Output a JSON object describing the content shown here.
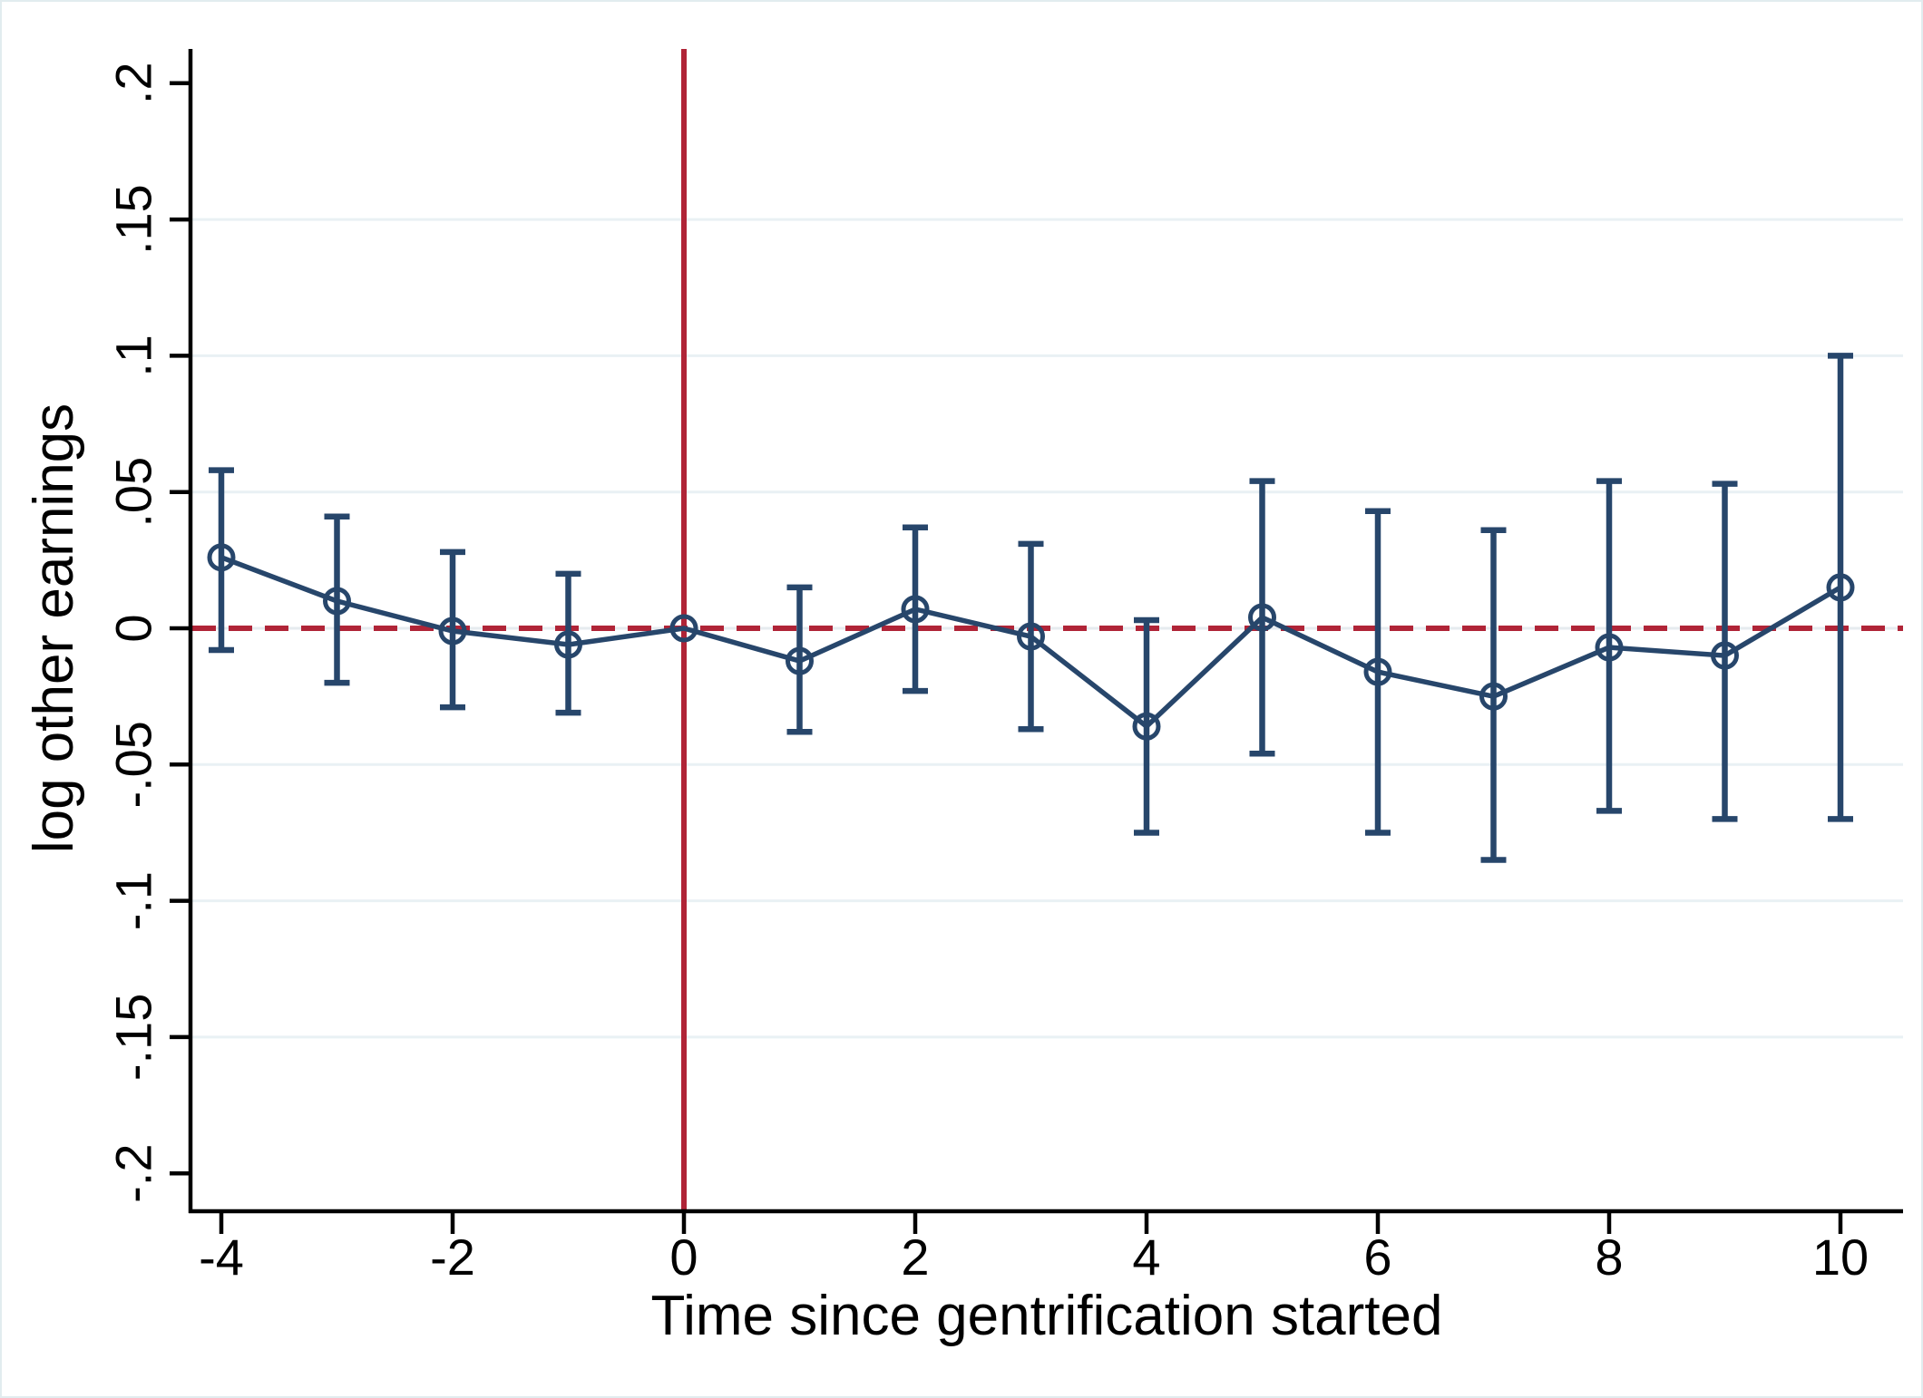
{
  "figure": {
    "x_axis_title": "Time since gentrification started",
    "y_axis_title": "log other earnings"
  },
  "chart_data": {
    "type": "line",
    "title": "",
    "xlabel": "Time since gentrification started",
    "ylabel": "log other earnings",
    "x": [
      -4,
      -3,
      -2,
      -1,
      0,
      1,
      2,
      3,
      4,
      5,
      6,
      7,
      8,
      9,
      10
    ],
    "series": [
      {
        "name": "coefficient",
        "marker": "hollow-circle",
        "values": [
          0.026,
          0.01,
          -0.001,
          -0.006,
          0.0,
          -0.012,
          0.007,
          -0.003,
          -0.036,
          0.004,
          -0.016,
          -0.025,
          -0.007,
          -0.01,
          0.015
        ]
      },
      {
        "name": "ci_lower",
        "values": [
          -0.008,
          -0.02,
          -0.029,
          -0.031,
          null,
          -0.038,
          -0.023,
          -0.037,
          -0.075,
          -0.046,
          -0.075,
          -0.085,
          -0.067,
          -0.07,
          -0.07
        ]
      },
      {
        "name": "ci_upper",
        "values": [
          0.058,
          0.041,
          0.028,
          0.02,
          null,
          0.015,
          0.037,
          0.031,
          0.003,
          0.054,
          0.043,
          0.036,
          0.054,
          0.053,
          0.1
        ]
      }
    ],
    "x_ticks": [
      -4,
      -2,
      0,
      2,
      4,
      6,
      8,
      10
    ],
    "x_tick_labels": [
      "-4",
      "-2",
      "0",
      "2",
      "4",
      "6",
      "8",
      "10"
    ],
    "y_ticks": [
      0.2,
      0.15,
      0.1,
      0.05,
      0,
      -0.05,
      -0.1,
      -0.15,
      -0.2
    ],
    "y_tick_labels": [
      ".2",
      ".15",
      ".1",
      ".05",
      "0",
      "-.05",
      "-.1",
      "-.15",
      "-.2"
    ],
    "xlim": [
      -4.27,
      10.55
    ],
    "ylim": [
      -0.214,
      0.213
    ],
    "grid": true,
    "gridline_values": [
      0.15,
      0.1,
      0.05,
      0,
      -0.05,
      -0.1,
      -0.15
    ],
    "reference_vline_x": 0,
    "reference_hline_y": 0,
    "legend": "none",
    "colors": {
      "series": "#27466B",
      "reference": "#B02437",
      "grid": "#E9F1F4",
      "zero_grid": "#E6EBEF",
      "axis": "#000000",
      "background": "#FFFFFF"
    }
  }
}
